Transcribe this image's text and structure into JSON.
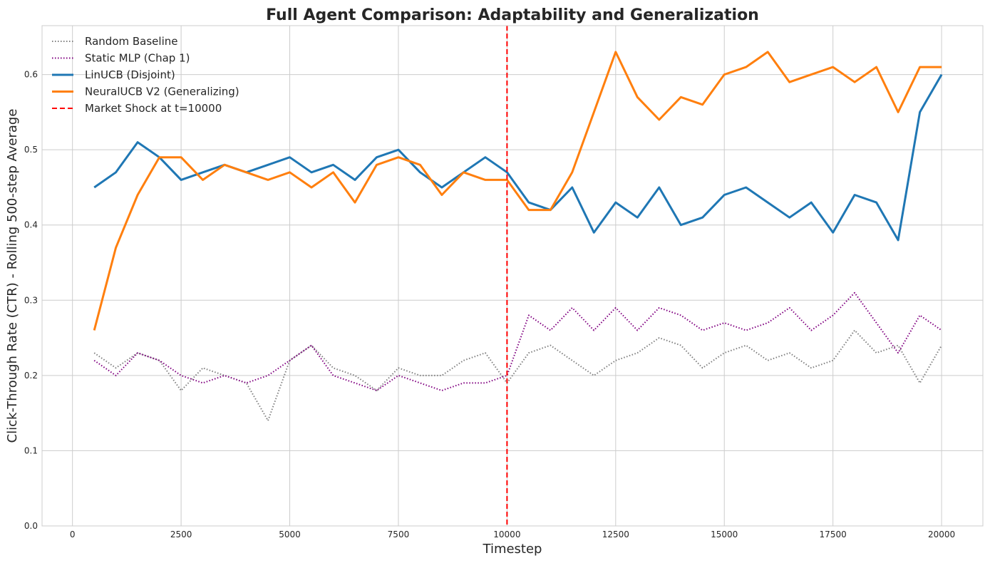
{
  "chart_data": {
    "type": "line",
    "title": "Full Agent Comparison: Adaptability and Generalization",
    "xlabel": "Timestep",
    "ylabel": "Click-Through Rate (CTR) - Rolling 500-step Average",
    "xlim": [
      -700,
      20950
    ],
    "ylim": [
      0.0,
      0.665
    ],
    "xticks": [
      0,
      2500,
      5000,
      7500,
      10000,
      12500,
      15000,
      17500,
      20000
    ],
    "yticks": [
      0.0,
      0.1,
      0.2,
      0.3,
      0.4,
      0.5,
      0.6
    ],
    "xtick_labels": [
      "0",
      "2500",
      "5000",
      "7500",
      "10000",
      "12500",
      "15000",
      "17500",
      "20000"
    ],
    "ytick_labels": [
      "0.0",
      "0.1",
      "0.2",
      "0.3",
      "0.4",
      "0.5",
      "0.6"
    ],
    "grid": true,
    "legend_position": "top-left",
    "x": [
      500,
      1000,
      1500,
      2000,
      2500,
      3000,
      3500,
      4000,
      4500,
      5000,
      5500,
      6000,
      6500,
      7000,
      7500,
      8000,
      8500,
      9000,
      9500,
      10000,
      10500,
      11000,
      11500,
      12000,
      12500,
      13000,
      13500,
      14000,
      14500,
      15000,
      15500,
      16000,
      16500,
      17000,
      17500,
      18000,
      18500,
      19000,
      19500,
      20000
    ],
    "series": [
      {
        "name": "Random Baseline",
        "color": "#808080",
        "style": "dotted",
        "values": [
          0.23,
          0.21,
          0.23,
          0.22,
          0.18,
          0.21,
          0.2,
          0.19,
          0.14,
          0.22,
          0.24,
          0.21,
          0.2,
          0.18,
          0.21,
          0.2,
          0.2,
          0.22,
          0.23,
          0.19,
          0.23,
          0.24,
          0.22,
          0.2,
          0.22,
          0.23,
          0.25,
          0.24,
          0.21,
          0.23,
          0.24,
          0.22,
          0.23,
          0.21,
          0.22,
          0.26,
          0.23,
          0.24,
          0.19,
          0.24
        ]
      },
      {
        "name": "Static MLP (Chap 1)",
        "color": "#800080",
        "style": "dotted",
        "values": [
          0.22,
          0.2,
          0.23,
          0.22,
          0.2,
          0.19,
          0.2,
          0.19,
          0.2,
          0.22,
          0.24,
          0.2,
          0.19,
          0.18,
          0.2,
          0.19,
          0.18,
          0.19,
          0.19,
          0.2,
          0.28,
          0.26,
          0.29,
          0.26,
          0.29,
          0.26,
          0.29,
          0.28,
          0.26,
          0.27,
          0.26,
          0.27,
          0.29,
          0.26,
          0.28,
          0.31,
          0.27,
          0.23,
          0.28,
          0.26
        ]
      },
      {
        "name": "LinUCB (Disjoint)",
        "color": "#1f77b4",
        "style": "solid",
        "values": [
          0.45,
          0.47,
          0.51,
          0.49,
          0.46,
          0.47,
          0.48,
          0.47,
          0.48,
          0.49,
          0.47,
          0.48,
          0.46,
          0.49,
          0.5,
          0.47,
          0.45,
          0.47,
          0.49,
          0.47,
          0.43,
          0.42,
          0.45,
          0.39,
          0.43,
          0.41,
          0.45,
          0.4,
          0.41,
          0.44,
          0.45,
          0.43,
          0.41,
          0.43,
          0.39,
          0.44,
          0.43,
          0.38,
          0.55,
          0.6
        ]
      },
      {
        "name": "NeuralUCB V2 (Generalizing)",
        "color": "#ff7f0e",
        "style": "solid",
        "values": [
          0.26,
          0.37,
          0.44,
          0.49,
          0.49,
          0.46,
          0.48,
          0.47,
          0.46,
          0.47,
          0.45,
          0.47,
          0.43,
          0.48,
          0.49,
          0.48,
          0.44,
          0.47,
          0.46,
          0.46,
          0.42,
          0.42,
          0.47,
          0.55,
          0.63,
          0.57,
          0.54,
          0.57,
          0.56,
          0.6,
          0.61,
          0.63,
          0.59,
          0.6,
          0.61,
          0.59,
          0.61,
          0.55,
          0.61,
          0.61
        ]
      }
    ],
    "vline": {
      "name": "Market Shock at t=10000",
      "x": 10000,
      "color": "#ff0000",
      "style": "dashed"
    }
  }
}
